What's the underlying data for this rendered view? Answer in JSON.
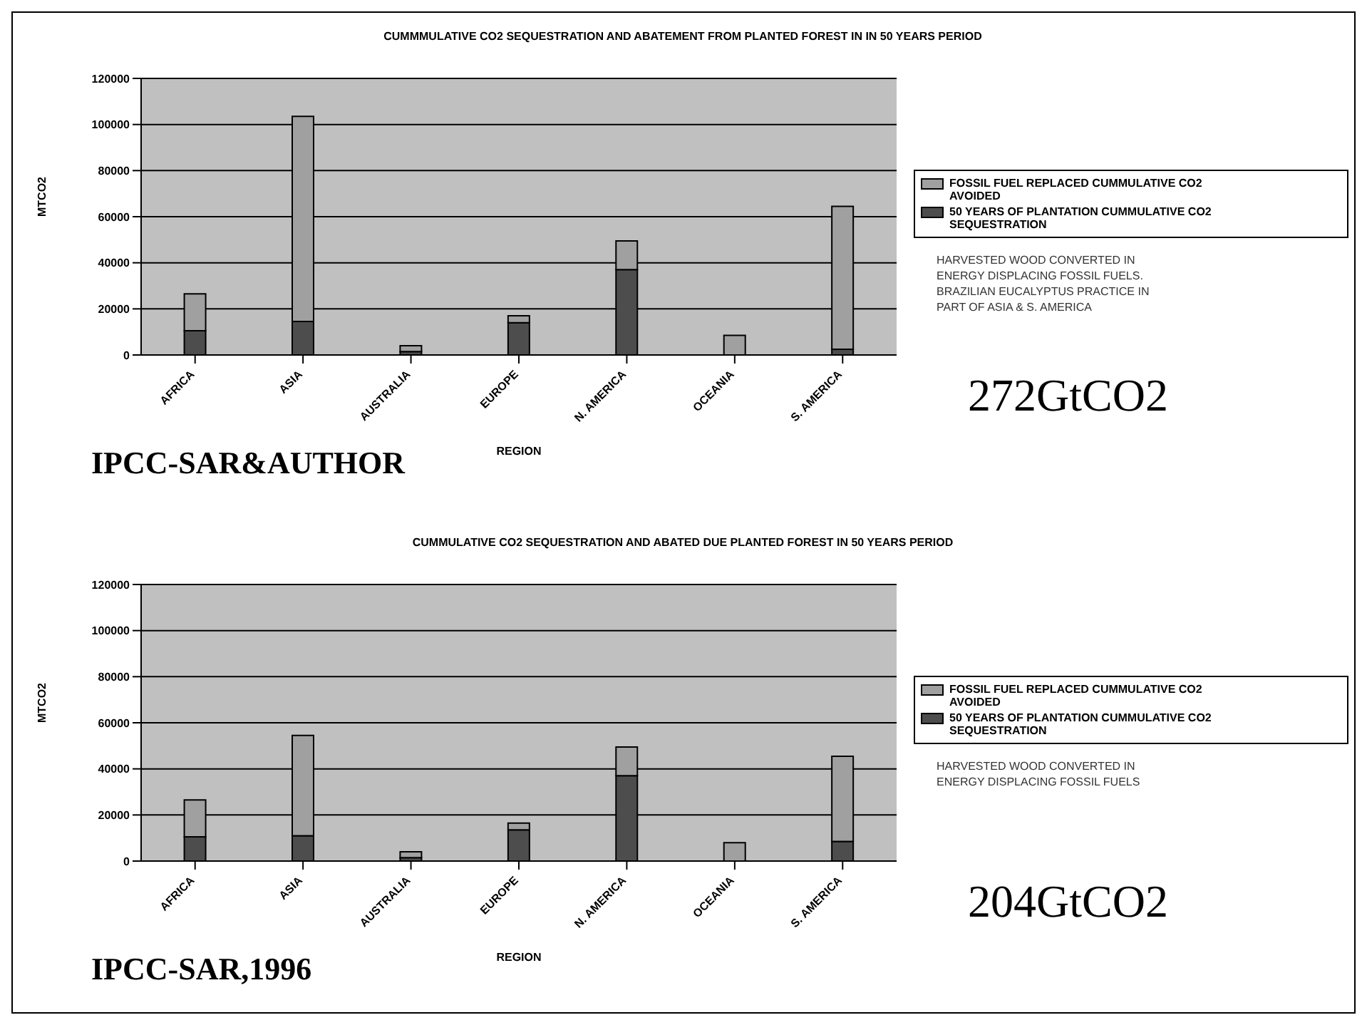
{
  "chart_data": [
    {
      "type": "bar",
      "title": "CUMMMULATIVE CO2 SEQUESTRATION AND ABATEMENT FROM PLANTED FOREST IN  IN 50 YEARS PERIOD",
      "xlabel": "REGION",
      "ylabel": "MTCO2",
      "categories": [
        "AFRICA",
        "ASIA",
        "AUSTRALIA",
        "EUROPE",
        "N. AMERICA",
        "OCEANIA",
        "S. AMERICA"
      ],
      "stacked": true,
      "ylim": [
        0,
        120000
      ],
      "yticks": [
        0,
        20000,
        40000,
        60000,
        80000,
        100000,
        120000
      ],
      "grid": "y",
      "legend": "right",
      "series": [
        {
          "name": "50 YEARS OF PLANTATION CUMMULATIVE CO2 SEQUESTRATION",
          "color": "#4d4d4d",
          "values": [
            10500,
            14500,
            1500,
            14000,
            37000,
            0,
            2500
          ]
        },
        {
          "name": "FOSSIL FUEL REPLACED CUMMULATIVE CO2 AVOIDED",
          "color": "#a0a0a0",
          "values": [
            16000,
            89000,
            2500,
            3000,
            12500,
            8500,
            62000
          ]
        }
      ],
      "annotations": [
        "HARVESTED WOOD CONVERTED IN ENERGY DISPLACING FOSSIL FUELS. BRAZILIAN EUCALYPTUS PRACTICE IN PART OF ASIA & S. AMERICA",
        "272GtCO2",
        "IPCC-SAR&AUTHOR"
      ]
    },
    {
      "type": "bar",
      "title": "CUMMULATIVE CO2 SEQUESTRATION AND ABATED DUE PLANTED FOREST IN 50 YEARS PERIOD",
      "xlabel": "REGION",
      "ylabel": "MTCO2",
      "categories": [
        "AFRICA",
        "ASIA",
        "AUSTRALIA",
        "EUROPE",
        "N. AMERICA",
        "OCEANIA",
        "S. AMERICA"
      ],
      "stacked": true,
      "ylim": [
        0,
        120000
      ],
      "yticks": [
        0,
        20000,
        40000,
        60000,
        80000,
        100000,
        120000
      ],
      "grid": "y",
      "legend": "right",
      "series": [
        {
          "name": "50 YEARS OF PLANTATION CUMMULATIVE CO2 SEQUESTRATION",
          "color": "#4d4d4d",
          "values": [
            10500,
            11000,
            1500,
            13500,
            37000,
            0,
            8500
          ]
        },
        {
          "name": "FOSSIL FUEL REPLACED CUMMULATIVE CO2 AVOIDED",
          "color": "#a0a0a0",
          "values": [
            16000,
            43500,
            2500,
            3000,
            12500,
            8000,
            37000
          ]
        }
      ],
      "annotations": [
        "HARVESTED WOOD CONVERTED IN ENERGY DISPLACING FOSSIL FUELS",
        "204GtCO2",
        "IPCC-SAR,1996"
      ]
    }
  ]
}
